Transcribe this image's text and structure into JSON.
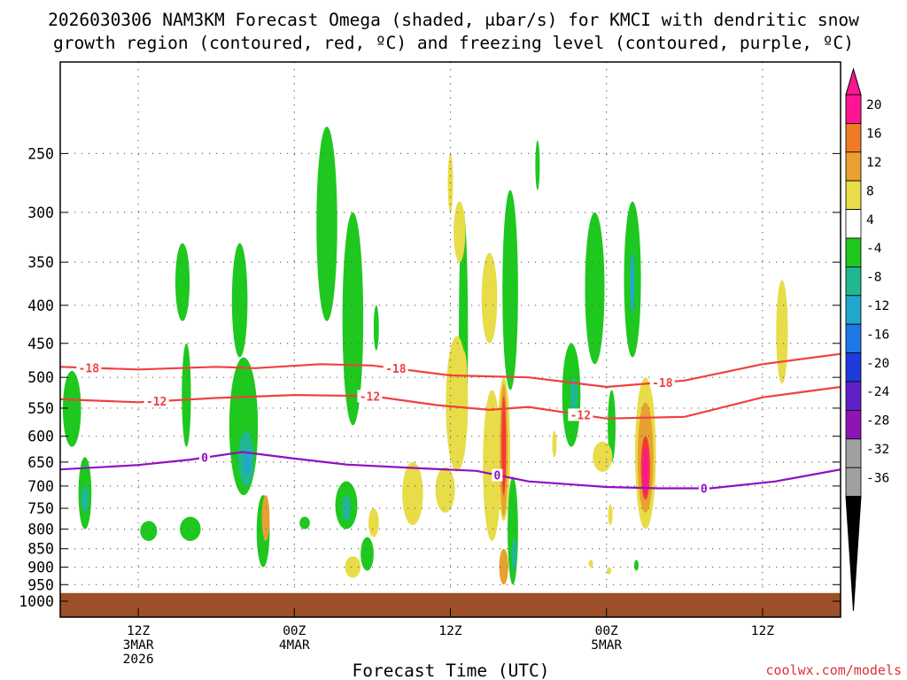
{
  "chart_data": {
    "type": "heatmap",
    "title_line1": "2026030306 NAM3KM Forecast Omega (shaded, μbar/s) for KMCI with dendritic snow",
    "title_line2": "growth region (contoured, red, ºC) and freezing level (contoured, purple, ºC)",
    "xlabel": "Forecast Time (UTC)",
    "credit": "coolwx.com/models",
    "x_unit": "forecast hours from 2026-03-03 06Z",
    "xlim": [
      0,
      60
    ],
    "y_unit": "hPa",
    "ylim": [
      1000,
      200
    ],
    "yticks": [
      250,
      300,
      350,
      400,
      450,
      500,
      550,
      600,
      650,
      700,
      750,
      800,
      850,
      900,
      950,
      1000
    ],
    "xticks": [
      {
        "hour": 6,
        "lines": [
          "12Z",
          "3MAR",
          "2026"
        ]
      },
      {
        "hour": 18,
        "lines": [
          "00Z",
          "4MAR"
        ]
      },
      {
        "hour": 30,
        "lines": [
          "12Z"
        ]
      },
      {
        "hour": 42,
        "lines": [
          "00Z",
          "5MAR"
        ]
      },
      {
        "hour": 54,
        "lines": [
          "12Z"
        ]
      }
    ],
    "colorbar": {
      "labels": [
        "20",
        "16",
        "12",
        "8",
        "4",
        "-4",
        "-8",
        "-12",
        "-16",
        "-20",
        "-24",
        "-28",
        "-32",
        "-36"
      ],
      "colors": [
        "#ff1493",
        "#f03c32",
        "#f07a28",
        "#e8a030",
        "#e8dc48",
        "#ffffff",
        "#1ec81e",
        "#20b890",
        "#20a8cc",
        "#1e78e8",
        "#1e3cdc",
        "#6020c8",
        "#9014b4",
        "#a0a0a0",
        "#000000"
      ]
    },
    "omega_contours": [
      {
        "t": 0.9,
        "p": [
          490,
          620
        ],
        "w": 1.4,
        "level": -4
      },
      {
        "t": 1.9,
        "p": [
          640,
          800
        ],
        "w": 1.0,
        "level": -4
      },
      {
        "t": 1.9,
        "p": [
          700,
          760
        ],
        "w": 0.6,
        "level": -8
      },
      {
        "t": 6.8,
        "p": [
          780,
          830
        ],
        "w": 1.3,
        "level": -4
      },
      {
        "t": 9.4,
        "p": [
          330,
          420
        ],
        "w": 1.1,
        "level": -4
      },
      {
        "t": 9.7,
        "p": [
          450,
          620
        ],
        "w": 0.7,
        "level": -4
      },
      {
        "t": 10.0,
        "p": [
          770,
          830
        ],
        "w": 1.6,
        "level": -4
      },
      {
        "t": 13.8,
        "p": [
          330,
          470
        ],
        "w": 1.2,
        "level": -4
      },
      {
        "t": 14.1,
        "p": [
          470,
          720
        ],
        "w": 2.2,
        "level": -4
      },
      {
        "t": 14.3,
        "p": [
          590,
          700
        ],
        "w": 1.2,
        "level": -8
      },
      {
        "t": 14.4,
        "p": [
          620,
          680
        ],
        "w": 0.5,
        "level": -12
      },
      {
        "t": 15.6,
        "p": [
          720,
          900
        ],
        "w": 1.0,
        "level": -4
      },
      {
        "t": 18.8,
        "p": [
          770,
          800
        ],
        "w": 0.8,
        "level": -4
      },
      {
        "t": 20.5,
        "p": [
          230,
          420
        ],
        "w": 1.6,
        "level": -4
      },
      {
        "t": 22.5,
        "p": [
          300,
          580
        ],
        "w": 1.6,
        "level": -4
      },
      {
        "t": 22.0,
        "p": [
          690,
          800
        ],
        "w": 1.7,
        "level": -4
      },
      {
        "t": 22.0,
        "p": [
          720,
          780
        ],
        "w": 0.7,
        "level": -8
      },
      {
        "t": 23.6,
        "p": [
          820,
          910
        ],
        "w": 1.0,
        "level": -4
      },
      {
        "t": 24.3,
        "p": [
          400,
          460
        ],
        "w": 0.4,
        "level": -4
      },
      {
        "t": 31.0,
        "p": [
          300,
          640
        ],
        "w": 0.7,
        "level": -4
      },
      {
        "t": 34.6,
        "p": [
          280,
          520
        ],
        "w": 1.2,
        "level": -4
      },
      {
        "t": 34.8,
        "p": [
          680,
          950
        ],
        "w": 0.8,
        "level": -4
      },
      {
        "t": 34.9,
        "p": [
          820,
          910
        ],
        "w": 0.4,
        "level": -8
      },
      {
        "t": 36.7,
        "p": [
          240,
          280
        ],
        "w": 0.2,
        "level": -4
      },
      {
        "t": 39.3,
        "p": [
          450,
          620
        ],
        "w": 1.4,
        "level": -4
      },
      {
        "t": 39.5,
        "p": [
          500,
          560
        ],
        "w": 0.6,
        "level": -8
      },
      {
        "t": 41.1,
        "p": [
          300,
          480
        ],
        "w": 1.5,
        "level": -4
      },
      {
        "t": 42.4,
        "p": [
          520,
          650
        ],
        "w": 0.6,
        "level": -4
      },
      {
        "t": 44.0,
        "p": [
          290,
          470
        ],
        "w": 1.3,
        "level": -4
      },
      {
        "t": 44.0,
        "p": [
          340,
          410
        ],
        "w": 0.3,
        "level": -12
      },
      {
        "t": 44.3,
        "p": [
          880,
          910
        ],
        "w": 0.2,
        "level": -4
      }
    ],
    "omega_rising": [
      {
        "t": 30.0,
        "p": [
          250,
          300
        ],
        "w": 0.4,
        "level": 4
      },
      {
        "t": 30.5,
        "p": [
          440,
          670
        ],
        "w": 1.7,
        "level": 4
      },
      {
        "t": 31.0,
        "p": [
          460,
          540
        ],
        "w": 0.6,
        "level": 4
      },
      {
        "t": 27.1,
        "p": [
          650,
          790
        ],
        "w": 1.6,
        "level": 4
      },
      {
        "t": 29.6,
        "p": [
          660,
          760
        ],
        "w": 1.5,
        "level": 4
      },
      {
        "t": 33.2,
        "p": [
          520,
          830
        ],
        "w": 1.4,
        "level": 4
      },
      {
        "t": 33.0,
        "p": [
          340,
          450
        ],
        "w": 1.2,
        "level": 4
      },
      {
        "t": 34.1,
        "p": [
          500,
          780
        ],
        "w": 1.0,
        "level": 4
      },
      {
        "t": 34.1,
        "p": [
          510,
          770
        ],
        "w": 0.6,
        "level": 8
      },
      {
        "t": 34.1,
        "p": [
          530,
          720
        ],
        "w": 0.35,
        "level": 16
      },
      {
        "t": 34.1,
        "p": [
          850,
          950
        ],
        "w": 0.7,
        "level": 8
      },
      {
        "t": 30.7,
        "p": [
          290,
          350
        ],
        "w": 0.9,
        "level": 4
      },
      {
        "t": 38.0,
        "p": [
          590,
          640
        ],
        "w": 0.2,
        "level": 4
      },
      {
        "t": 41.7,
        "p": [
          610,
          670
        ],
        "w": 1.5,
        "level": 4
      },
      {
        "t": 40.8,
        "p": [
          880,
          900
        ],
        "w": 0.2,
        "level": 4
      },
      {
        "t": 42.2,
        "p": [
          900,
          920
        ],
        "w": 0.2,
        "level": 4
      },
      {
        "t": 45.0,
        "p": [
          500,
          800
        ],
        "w": 1.6,
        "level": 4
      },
      {
        "t": 45.0,
        "p": [
          540,
          760
        ],
        "w": 1.2,
        "level": 8
      },
      {
        "t": 45.0,
        "p": [
          600,
          730
        ],
        "w": 0.7,
        "level": 16
      },
      {
        "t": 45.0,
        "p": [
          620,
          720
        ],
        "w": 0.4,
        "level": 20
      },
      {
        "t": 15.8,
        "p": [
          720,
          830
        ],
        "w": 0.6,
        "level": 8
      },
      {
        "t": 22.5,
        "p": [
          870,
          930
        ],
        "w": 1.2,
        "level": 4
      },
      {
        "t": 24.1,
        "p": [
          750,
          820
        ],
        "w": 0.8,
        "level": 4
      },
      {
        "t": 55.5,
        "p": [
          370,
          510
        ],
        "w": 0.9,
        "level": 4
      },
      {
        "t": 42.3,
        "p": [
          740,
          790
        ],
        "w": 0.3,
        "level": 4
      }
    ],
    "series": [
      {
        "name": "-18",
        "color": "#f04040",
        "points": [
          [
            0,
            484
          ],
          [
            6,
            488
          ],
          [
            12,
            484
          ],
          [
            15,
            486
          ],
          [
            20,
            480
          ],
          [
            24,
            482
          ],
          [
            30,
            497
          ],
          [
            36,
            500
          ],
          [
            42,
            515
          ],
          [
            48,
            505
          ],
          [
            54,
            480
          ],
          [
            60,
            465
          ]
        ],
        "label_hours": [
          2.2,
          25.8,
          46.3
        ]
      },
      {
        "name": "-12",
        "color": "#f04040",
        "points": [
          [
            0,
            535
          ],
          [
            6,
            540
          ],
          [
            12,
            533
          ],
          [
            18,
            528
          ],
          [
            24,
            530
          ],
          [
            29,
            545
          ],
          [
            33,
            553
          ],
          [
            36,
            548
          ],
          [
            42,
            568
          ],
          [
            48,
            565
          ],
          [
            54,
            532
          ],
          [
            60,
            515
          ]
        ],
        "label_hours": [
          7.4,
          23.8,
          40.0
        ]
      },
      {
        "name": "0",
        "color": "#9010c0",
        "points": [
          [
            0,
            665
          ],
          [
            6,
            656
          ],
          [
            10,
            645
          ],
          [
            14,
            630
          ],
          [
            18,
            643
          ],
          [
            22,
            655
          ],
          [
            28,
            663
          ],
          [
            32,
            668
          ],
          [
            36,
            690
          ],
          [
            42,
            702
          ],
          [
            46,
            705
          ],
          [
            50,
            705
          ],
          [
            55,
            690
          ],
          [
            60,
            665
          ]
        ],
        "label_hours": [
          11.1,
          33.6,
          49.5
        ]
      }
    ],
    "ground": {
      "pressure": 975,
      "color": "#9c4f28"
    }
  }
}
